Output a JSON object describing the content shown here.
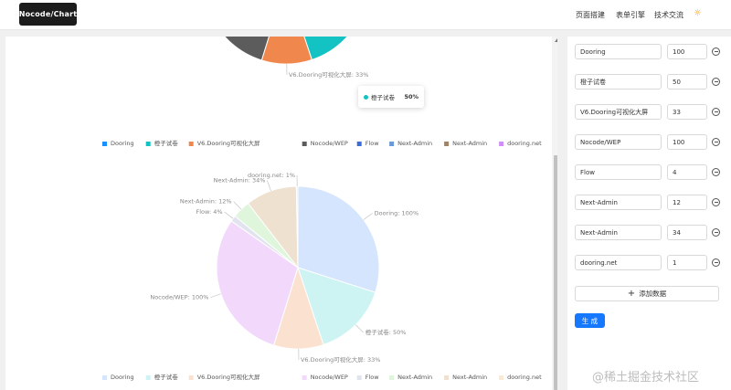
{
  "header": {
    "logo": "Nocode/Chart",
    "nav": [
      "页面搭建",
      "表单引擎",
      "技术交流"
    ],
    "theme_icon": "sun-icon"
  },
  "chart_data": [
    {
      "type": "pie",
      "categories": [
        "Dooring",
        "橙子试卷",
        "V6.Dooring可视化大屏",
        "Nocode/WEP",
        "Flow",
        "Next-Admin",
        "Next-Admin",
        "dooring.net"
      ],
      "values": [
        100,
        50,
        33,
        100,
        4,
        12,
        34,
        1
      ],
      "colors": [
        "#1890ff",
        "#13c2c2",
        "#f0884d",
        "#5c5c5c",
        "#3d6bd8",
        "#6a9ad8",
        "#a0846a",
        "#d28ef8"
      ],
      "visible_labels": [
        "Nocode/WEP: 100%",
        "V6.Dooring可视化大屏: 33%"
      ],
      "legend": "bottom",
      "tooltip": {
        "name": "橙子试卷",
        "value": "50%"
      }
    },
    {
      "type": "pie",
      "categories": [
        "Dooring",
        "橙子试卷",
        "V6.Dooring可视化大屏",
        "Nocode/WEP",
        "Flow",
        "Next-Admin",
        "Next-Admin",
        "dooring.net"
      ],
      "values": [
        100,
        50,
        33,
        100,
        4,
        12,
        34,
        1
      ],
      "colors": [
        "#d4e5fd",
        "#cdf4f3",
        "#fbe1d0",
        "#f2d9fc",
        "#e1e4ee",
        "#dff6dc",
        "#eee1cf",
        "#f7ead6"
      ],
      "labels": [
        "Dooring: 100%",
        "橙子试卷: 50%",
        "V6.Dooring可视化大屏: 33%",
        "Nocode/WEP: 100%",
        "Flow: 4%",
        "Next-Admin: 12%",
        "Next-Admin: 34%",
        "dooring.net: 1%"
      ],
      "legend": "bottom"
    }
  ],
  "editor": {
    "rows": [
      {
        "name": "Dooring",
        "value": "100"
      },
      {
        "name": "橙子试卷",
        "value": "50"
      },
      {
        "name": "V6.Dooring可视化大屏",
        "value": "33"
      },
      {
        "name": "Nocode/WEP",
        "value": "100"
      },
      {
        "name": "Flow",
        "value": "4"
      },
      {
        "name": "Next-Admin",
        "value": "12"
      },
      {
        "name": "Next-Admin",
        "value": "34"
      },
      {
        "name": "dooring.net",
        "value": "1"
      }
    ],
    "add_label": "添加数据",
    "generate_label": "生 成"
  },
  "watermark": "@稀土掘金技术社区"
}
